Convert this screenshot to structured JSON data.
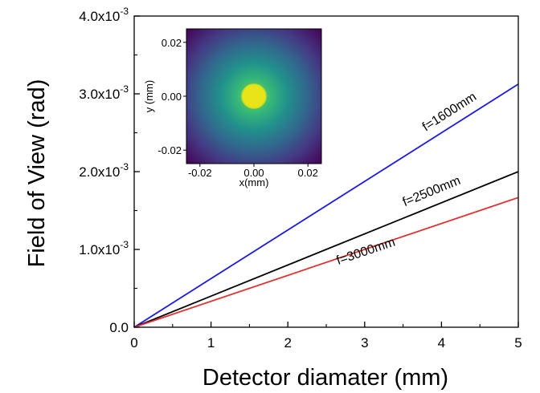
{
  "chart_data": [
    {
      "type": "line",
      "xlabel": "Detector diamater (mm)",
      "ylabel": "Field of View (rad)",
      "xlim": [
        0,
        5
      ],
      "ylim": [
        0,
        0.004
      ],
      "x_ticks": [
        {
          "value": 0,
          "label": "0"
        },
        {
          "value": 1,
          "label": "1"
        },
        {
          "value": 2,
          "label": "2"
        },
        {
          "value": 3,
          "label": "3"
        },
        {
          "value": 4,
          "label": "4"
        },
        {
          "value": 5,
          "label": "5"
        }
      ],
      "y_ticks": [
        {
          "value": 0,
          "base": "0.0",
          "exp": ""
        },
        {
          "value": 0.001,
          "base": "1.0x10",
          "exp": "-3"
        },
        {
          "value": 0.002,
          "base": "2.0x10",
          "exp": "-3"
        },
        {
          "value": 0.003,
          "base": "3.0x10",
          "exp": "-3"
        },
        {
          "value": 0.004,
          "base": "4.0x10",
          "exp": "-3"
        }
      ],
      "grid": false,
      "series": [
        {
          "name": "f=1600mm",
          "color": "#1a1adf",
          "x": [
            0,
            5
          ],
          "y": [
            0,
            0.003125
          ]
        },
        {
          "name": "f=2500mm",
          "color": "#000000",
          "x": [
            0,
            5
          ],
          "y": [
            0,
            0.002
          ]
        },
        {
          "name": "f=3000mm",
          "color": "#e03030",
          "x": [
            0,
            5
          ],
          "y": [
            0,
            0.001667
          ]
        }
      ],
      "annotations": [
        {
          "text": "f=1600mm",
          "series": 0,
          "at_x": 4.13,
          "offset": 14
        },
        {
          "text": "f=2500mm",
          "series": 1,
          "at_x": 3.89,
          "offset": 14
        },
        {
          "text": "f=3000mm",
          "series": 2,
          "at_x": 3.03,
          "offset": -8
        }
      ]
    },
    {
      "type": "heatmap",
      "subtype": "inset",
      "xlabel": "x(mm)",
      "ylabel": "y (mm)",
      "xlim": [
        -0.025,
        0.025
      ],
      "ylim": [
        -0.025,
        0.025
      ],
      "x_ticks": [
        {
          "value": -0.02,
          "label": "-0.02"
        },
        {
          "value": 0.0,
          "label": "0.00"
        },
        {
          "value": 0.02,
          "label": "0.02"
        }
      ],
      "y_ticks": [
        {
          "value": 0.02,
          "label": "0.02"
        },
        {
          "value": 0.0,
          "label": "0.00"
        },
        {
          "value": -0.02,
          "label": "-0.02"
        }
      ],
      "colormap": "viridis",
      "description_values": {
        "peak_center": [
          0,
          0
        ],
        "core_radius": 0.0045,
        "halo_sigma": 0.014
      }
    }
  ]
}
